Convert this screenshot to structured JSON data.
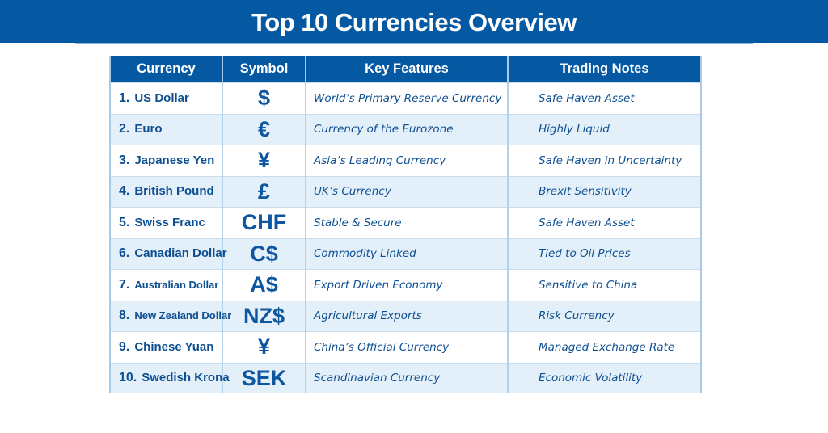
{
  "header": {
    "title": "Top 10 Currencies Overview"
  },
  "colors": {
    "primary_blue": "#0559a3",
    "text_blue": "#0d4f92",
    "row_alt": "#e3eff9",
    "border": "#a9c9e8"
  },
  "table": {
    "columns": [
      "Currency",
      "Symbol",
      "Key Features",
      "Trading Notes"
    ],
    "rows": [
      {
        "num": "1.",
        "currency": "US Dollar",
        "symbol": "$",
        "feature": "World’s Primary Reserve Currency",
        "note": "Safe Haven Asset"
      },
      {
        "num": "2.",
        "currency": "Euro",
        "symbol": "€",
        "feature": "Currency of the Eurozone",
        "note": "Highly Liquid"
      },
      {
        "num": "3.",
        "currency": "Japanese Yen",
        "symbol": "¥",
        "feature": "Asia’s Leading Currency",
        "note": "Safe Haven in Uncertainty"
      },
      {
        "num": "4.",
        "currency": "British Pound",
        "symbol": "£",
        "feature": "UK’s Currency",
        "note": "Brexit Sensitivity"
      },
      {
        "num": "5.",
        "currency": "Swiss Franc",
        "symbol": "CHF",
        "feature": "Stable & Secure",
        "note": "Safe Haven Asset"
      },
      {
        "num": "6.",
        "currency": "Canadian Dollar",
        "symbol": "C$",
        "feature": "Commodity Linked",
        "note": "Tied to Oil Prices"
      },
      {
        "num": "7.",
        "currency": "Australian Dollar",
        "symbol": "A$",
        "feature": "Export Driven Economy",
        "note": "Sensitive to China"
      },
      {
        "num": "8.",
        "currency": "New Zealand Dollar",
        "symbol": "NZ$",
        "feature": "Agricultural Exports",
        "note": "Risk Currency"
      },
      {
        "num": "9.",
        "currency": "Chinese Yuan",
        "symbol": "¥",
        "feature": "China’s Official Currency",
        "note": "Managed Exchange Rate"
      },
      {
        "num": "10.",
        "currency": "Swedish Krona",
        "symbol": "SEK",
        "feature": "Scandinavian Currency",
        "note": "Economic Volatility"
      }
    ]
  }
}
